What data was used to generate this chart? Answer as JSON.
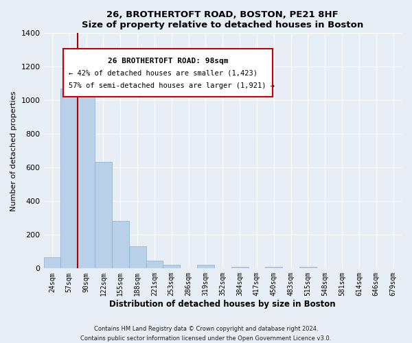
{
  "title": "26, BROTHERTOFT ROAD, BOSTON, PE21 8HF",
  "subtitle": "Size of property relative to detached houses in Boston",
  "xlabel": "Distribution of detached houses by size in Boston",
  "ylabel": "Number of detached properties",
  "bar_labels": [
    "24sqm",
    "57sqm",
    "90sqm",
    "122sqm",
    "155sqm",
    "188sqm",
    "221sqm",
    "253sqm",
    "286sqm",
    "319sqm",
    "352sqm",
    "384sqm",
    "417sqm",
    "450sqm",
    "483sqm",
    "515sqm",
    "548sqm",
    "581sqm",
    "614sqm",
    "646sqm",
    "679sqm"
  ],
  "bar_values": [
    65,
    1070,
    1160,
    635,
    285,
    130,
    48,
    22,
    0,
    22,
    0,
    10,
    0,
    10,
    0,
    10,
    0,
    0,
    0,
    0,
    0
  ],
  "bar_color": "#b8d0e8",
  "bar_edge_color": "#8ab0cc",
  "property_line_label": "26 BROTHERTOFT ROAD: 98sqm",
  "annotation_line1": "← 42% of detached houses are smaller (1,423)",
  "annotation_line2": "57% of semi-detached houses are larger (1,921) →",
  "annotation_box_color": "#ffffff",
  "annotation_box_edge": "#cc0000",
  "vline_color": "#aa0000",
  "ylim": [
    0,
    1400
  ],
  "yticks": [
    0,
    200,
    400,
    600,
    800,
    1000,
    1200,
    1400
  ],
  "footer1": "Contains HM Land Registry data © Crown copyright and database right 2024.",
  "footer2": "Contains public sector information licensed under the Open Government Licence v3.0.",
  "background_color": "#e8eef5",
  "plot_bg_color": "#e8eef5",
  "grid_color": "#ffffff",
  "title_fontsize": 9.5,
  "label_fontsize": 8,
  "tick_fontsize": 7
}
